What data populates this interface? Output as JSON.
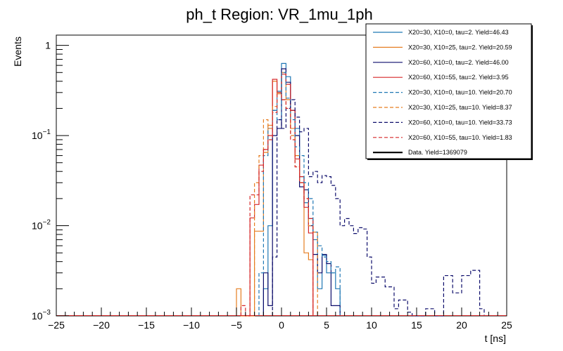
{
  "chart_data": {
    "type": "line",
    "title": "ph_t Region: VR_1mu_1ph",
    "xlabel": "t [ns]",
    "ylabel": "Events",
    "xlim": [
      -25,
      25
    ],
    "ylim": [
      0.001,
      1.3
    ],
    "y_scale": "log",
    "x_ticks": [
      -25,
      -20,
      -15,
      -10,
      -5,
      0,
      5,
      10,
      15,
      20,
      25
    ],
    "x_tick_labels": [
      "−25",
      "−20",
      "−15",
      "−10",
      "−5",
      "0",
      "5",
      "10",
      "15",
      "20",
      "25"
    ],
    "y_ticks": [
      {
        "value": 0.001,
        "base": "10",
        "exp": "−3"
      },
      {
        "value": 0.01,
        "base": "10",
        "exp": "−2"
      },
      {
        "value": 0.1,
        "base": "10",
        "exp": "−1"
      },
      {
        "value": 1,
        "base": "1",
        "exp": ""
      }
    ],
    "bin_width": 0.5,
    "legend_position": "top-right",
    "series": [
      {
        "name": "X20=30, X10=0, tau=2. Yield=46.43",
        "color": "#1f77b4",
        "dash": false,
        "width": 1.2,
        "bins": [
          [
            -2,
            0.002
          ],
          [
            -1.5,
            0.01
          ],
          [
            -1,
            0.19
          ],
          [
            -0.5,
            0.31
          ],
          [
            0,
            0.63
          ],
          [
            0.5,
            0.45
          ],
          [
            1,
            0.19
          ],
          [
            1.5,
            0.12
          ],
          [
            2,
            0.035
          ],
          [
            2.5,
            0.018
          ],
          [
            3,
            0.012
          ],
          [
            3.5,
            0.007
          ],
          [
            4,
            0.002
          ],
          [
            4.5,
            0.0047
          ],
          [
            5,
            0.003
          ],
          [
            5.5,
            0.003
          ],
          [
            6,
            0.002
          ]
        ]
      },
      {
        "name": "X20=30, X10=25, tau=2. Yield=20.59",
        "color": "#e67e22",
        "dash": false,
        "width": 1.2,
        "bins": [
          [
            -5,
            0.002
          ],
          [
            -3,
            0.0087
          ],
          [
            -2.5,
            0.0087
          ],
          [
            -2,
            0.065
          ],
          [
            -1.5,
            0.13
          ],
          [
            -1,
            0.4
          ],
          [
            -0.5,
            0.29
          ],
          [
            0,
            0.5
          ],
          [
            0.5,
            0.25
          ],
          [
            1,
            0.12
          ],
          [
            1.5,
            0.06
          ],
          [
            2,
            0.03
          ],
          [
            2.5,
            0.005
          ],
          [
            3,
            0.0042
          ]
        ]
      },
      {
        "name": "X20=60, X10=0, tau=2. Yield=46.00",
        "color": "#0d0d6b",
        "dash": false,
        "width": 1.2,
        "bins": [
          [
            -2,
            0.003
          ],
          [
            -1.5,
            0.0013
          ],
          [
            -1,
            0.1
          ],
          [
            -0.5,
            0.12
          ],
          [
            0,
            0.55
          ],
          [
            0.5,
            0.39
          ],
          [
            1,
            0.19
          ],
          [
            1.5,
            0.1
          ],
          [
            2,
            0.027
          ],
          [
            2.5,
            0.025
          ],
          [
            3,
            0.01
          ],
          [
            3.5,
            0.0048
          ],
          [
            4,
            0.003
          ],
          [
            4.5,
            0.0048
          ],
          [
            5,
            0.0038
          ],
          [
            5.5,
            0.0013
          ],
          [
            6,
            0.0013
          ]
        ]
      },
      {
        "name": "X20=60, X10=55, tau=2. Yield=3.95",
        "color": "#d62728",
        "dash": false,
        "width": 1.2,
        "bins": [
          [
            -3.5,
            0.0122
          ],
          [
            -3,
            0.0172
          ],
          [
            -2.5,
            0.047
          ],
          [
            -2,
            0.07
          ],
          [
            -1.5,
            0.1
          ],
          [
            -1,
            0.42
          ],
          [
            -0.5,
            0.3
          ],
          [
            0,
            0.48
          ],
          [
            0.5,
            0.37
          ],
          [
            1,
            0.19
          ],
          [
            1.5,
            0.055
          ],
          [
            2,
            0.035
          ],
          [
            2.5,
            0.016
          ],
          [
            3,
            0.0083
          ]
        ]
      },
      {
        "name": "X20=30, X10=0, tau=10. Yield=20.70",
        "color": "#1f77b4",
        "dash": true,
        "width": 1.2,
        "bins": [
          [
            -2.5,
            0.003
          ],
          [
            -2,
            0.06
          ],
          [
            -1.5,
            0.12
          ],
          [
            -1,
            0.19
          ],
          [
            -0.5,
            0.15
          ],
          [
            0,
            0.5
          ],
          [
            0.5,
            0.26
          ],
          [
            1,
            0.15
          ],
          [
            1.5,
            0.075
          ],
          [
            2,
            0.06
          ],
          [
            2.5,
            0.03
          ],
          [
            3,
            0.02
          ],
          [
            3.5,
            0.0085
          ],
          [
            4,
            0.006
          ],
          [
            4.5,
            0.0045
          ],
          [
            5,
            0.004
          ],
          [
            5.5,
            0.003
          ],
          [
            6,
            0.0035
          ]
        ]
      },
      {
        "name": "X20=30, X10=25, tau=10. Yield=8.37",
        "color": "#e67e22",
        "dash": true,
        "width": 1.2,
        "bins": [
          [
            -3,
            0.03
          ],
          [
            -2.5,
            0.06
          ],
          [
            -2,
            0.15
          ],
          [
            -1.5,
            0.12
          ],
          [
            -1,
            0.21
          ],
          [
            -0.5,
            0.3
          ],
          [
            0,
            0.25
          ],
          [
            0.5,
            0.2
          ],
          [
            1,
            0.1
          ],
          [
            1.5,
            0.045
          ],
          [
            2,
            0.03
          ],
          [
            2.5,
            0.02
          ],
          [
            3,
            0.01
          ],
          [
            3.5,
            0.0085
          ]
        ]
      },
      {
        "name": "X20=60, X10=0, tau=10. Yield=33.73",
        "color": "#0d0d6b",
        "dash": true,
        "width": 1.2,
        "bins": [
          [
            -1,
            0.0045
          ],
          [
            -0.5,
            0.15
          ],
          [
            0,
            0.12
          ],
          [
            0.5,
            0.2
          ],
          [
            1,
            0.25
          ],
          [
            1.5,
            0.16
          ],
          [
            2,
            0.11
          ],
          [
            2.5,
            0.12
          ],
          [
            3,
            0.035
          ],
          [
            3.5,
            0.04
          ],
          [
            4,
            0.03
          ],
          [
            4.5,
            0.036
          ],
          [
            5,
            0.035
          ],
          [
            5.5,
            0.028
          ],
          [
            6,
            0.02
          ],
          [
            6.5,
            0.01
          ],
          [
            7,
            0.012
          ],
          [
            7.5,
            0.01
          ],
          [
            8,
            0.0082
          ],
          [
            8.5,
            0.0095
          ],
          [
            9,
            0.0092
          ],
          [
            9.5,
            0.0045
          ],
          [
            10,
            0.0023
          ],
          [
            10.5,
            0.0027
          ],
          [
            11,
            0.0027
          ],
          [
            11.5,
            0.0021
          ],
          [
            12,
            0.0021
          ],
          [
            12.5,
            0.0012
          ],
          [
            13,
            0.0015
          ],
          [
            13.5,
            0.0015
          ],
          [
            14,
            0.0011
          ],
          [
            16,
            0.0012
          ],
          [
            16.5,
            0.0012
          ],
          [
            18,
            0.0028
          ],
          [
            18.5,
            0.0028
          ],
          [
            19,
            0.0018
          ],
          [
            19.5,
            0.0018
          ],
          [
            20,
            0.0028
          ],
          [
            20.5,
            0.0028
          ],
          [
            21,
            0.0032
          ],
          [
            21.5,
            0.0032
          ],
          [
            22,
            0.0012
          ]
        ]
      },
      {
        "name": "X20=60, X10=55, tau=10. Yield=1.83",
        "color": "#d62728",
        "dash": true,
        "width": 1.2,
        "bins": [
          [
            -4.5,
            0.0013
          ],
          [
            -3.5,
            0.022
          ],
          [
            -3,
            0.022
          ],
          [
            -2.5,
            0.04
          ],
          [
            -2,
            0.07
          ],
          [
            -1.5,
            0.09
          ],
          [
            -1,
            0.18
          ],
          [
            -0.5,
            0.3
          ],
          [
            0,
            0.25
          ],
          [
            0.5,
            0.2
          ],
          [
            1,
            0.09
          ],
          [
            1.5,
            0.045
          ],
          [
            2,
            0.03
          ],
          [
            2.5,
            0.02
          ],
          [
            3,
            0.012
          ]
        ]
      },
      {
        "name": "Data. Yield=1369079",
        "color": "#000000",
        "dash": false,
        "width": 2.2,
        "bins": []
      }
    ]
  }
}
